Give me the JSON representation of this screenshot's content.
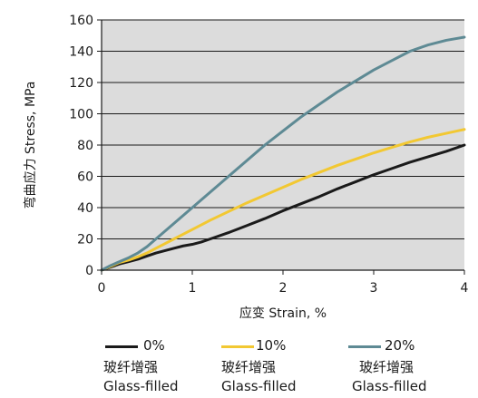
{
  "chart_data": {
    "type": "line",
    "xlabel": "应变 Strain, %",
    "ylabel": "弯曲应力 Stress, MPa",
    "xlim": [
      0,
      4
    ],
    "ylim": [
      0,
      160
    ],
    "x_ticks": [
      "0",
      "1",
      "2",
      "3",
      "4"
    ],
    "y_ticks": [
      "0",
      "20",
      "40",
      "60",
      "80",
      "100",
      "120",
      "140",
      "160"
    ],
    "grid": "horizontal",
    "plot_background": "#dcdcdc",
    "legend_position": "bottom",
    "series": [
      {
        "name": "0%",
        "label_cn": "玻纤增强",
        "label_en": "Glass-filled",
        "color": "#1a1a1a",
        "points": [
          [
            0,
            0
          ],
          [
            0.1,
            2
          ],
          [
            0.2,
            4
          ],
          [
            0.3,
            5.5
          ],
          [
            0.4,
            7
          ],
          [
            0.5,
            9
          ],
          [
            0.6,
            11
          ],
          [
            0.7,
            12.5
          ],
          [
            0.8,
            14
          ],
          [
            0.9,
            15.5
          ],
          [
            1.0,
            16.5
          ],
          [
            1.1,
            18
          ],
          [
            1.2,
            20
          ],
          [
            1.4,
            24
          ],
          [
            1.6,
            28.5
          ],
          [
            1.8,
            33
          ],
          [
            2.0,
            38
          ],
          [
            2.2,
            42.5
          ],
          [
            2.4,
            47
          ],
          [
            2.6,
            52
          ],
          [
            2.8,
            56.5
          ],
          [
            3.0,
            61
          ],
          [
            3.2,
            65
          ],
          [
            3.4,
            69
          ],
          [
            3.6,
            72.5
          ],
          [
            3.8,
            76
          ],
          [
            4.0,
            80
          ]
        ]
      },
      {
        "name": "10%",
        "label_cn": "玻纤增强",
        "label_en": "Glass-filled",
        "color": "#f2c832",
        "points": [
          [
            0,
            0
          ],
          [
            0.1,
            2.5
          ],
          [
            0.2,
            5
          ],
          [
            0.3,
            6.5
          ],
          [
            0.4,
            8.5
          ],
          [
            0.5,
            11
          ],
          [
            0.6,
            14
          ],
          [
            0.7,
            17
          ],
          [
            0.8,
            20
          ],
          [
            0.9,
            23
          ],
          [
            1.0,
            26
          ],
          [
            1.2,
            32
          ],
          [
            1.4,
            37.5
          ],
          [
            1.6,
            43
          ],
          [
            1.8,
            48
          ],
          [
            2.0,
            53
          ],
          [
            2.2,
            58
          ],
          [
            2.4,
            62.5
          ],
          [
            2.6,
            67
          ],
          [
            2.8,
            71
          ],
          [
            3.0,
            75
          ],
          [
            3.2,
            78.5
          ],
          [
            3.4,
            82
          ],
          [
            3.6,
            85
          ],
          [
            3.8,
            87.5
          ],
          [
            4.0,
            90
          ]
        ]
      },
      {
        "name": "20%",
        "label_cn": "玻纤增强",
        "label_en": "Glass-filled",
        "color": "#5e8a94",
        "points": [
          [
            0,
            0
          ],
          [
            0.1,
            3
          ],
          [
            0.2,
            5.5
          ],
          [
            0.3,
            8
          ],
          [
            0.4,
            11
          ],
          [
            0.5,
            15
          ],
          [
            0.6,
            20
          ],
          [
            0.7,
            25
          ],
          [
            0.8,
            30
          ],
          [
            0.9,
            35
          ],
          [
            1.0,
            40
          ],
          [
            1.2,
            50
          ],
          [
            1.4,
            60
          ],
          [
            1.6,
            70
          ],
          [
            1.8,
            80
          ],
          [
            2.0,
            89
          ],
          [
            2.2,
            98
          ],
          [
            2.4,
            106
          ],
          [
            2.6,
            114
          ],
          [
            2.8,
            121
          ],
          [
            3.0,
            128
          ],
          [
            3.2,
            134
          ],
          [
            3.4,
            140
          ],
          [
            3.6,
            144
          ],
          [
            3.8,
            147
          ],
          [
            4.0,
            149
          ]
        ]
      }
    ]
  }
}
